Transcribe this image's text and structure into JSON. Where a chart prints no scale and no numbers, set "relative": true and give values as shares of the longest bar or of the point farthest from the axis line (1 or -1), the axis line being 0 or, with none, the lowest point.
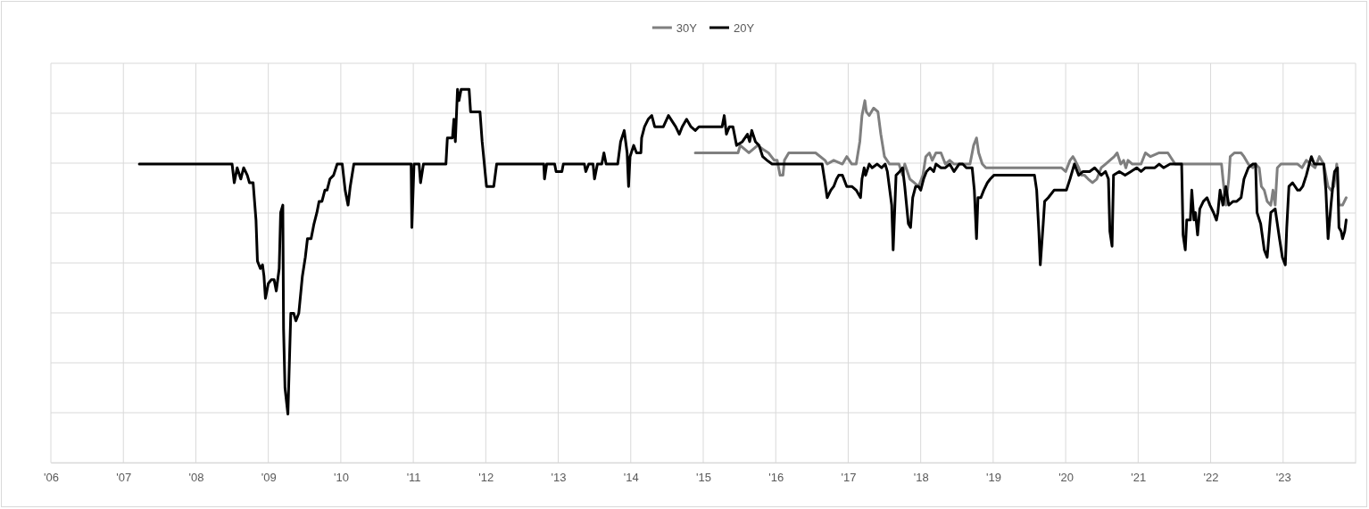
{
  "chart_data": {
    "type": "line",
    "relative": true,
    "xlim": [
      2006,
      2024
    ],
    "xticks": [
      {
        "value": 2006,
        "label": "'06"
      },
      {
        "value": 2007,
        "label": "'07"
      },
      {
        "value": 2008,
        "label": "'08"
      },
      {
        "value": 2009,
        "label": "'09"
      },
      {
        "value": 2010,
        "label": "'10"
      },
      {
        "value": 2011,
        "label": "'11"
      },
      {
        "value": 2012,
        "label": "'12"
      },
      {
        "value": 2013,
        "label": "'13"
      },
      {
        "value": 2014,
        "label": "'14"
      },
      {
        "value": 2015,
        "label": "'15"
      },
      {
        "value": 2016,
        "label": "'16"
      },
      {
        "value": 2017,
        "label": "'17"
      },
      {
        "value": 2018,
        "label": "'18"
      },
      {
        "value": 2019,
        "label": "'19"
      },
      {
        "value": 2020,
        "label": "'20"
      },
      {
        "value": 2021,
        "label": "'21"
      },
      {
        "value": 2022,
        "label": "'22"
      },
      {
        "value": 2023,
        "label": "'23"
      },
      {
        "value": 2024,
        "label": null
      }
    ],
    "grid": true,
    "legend": "top",
    "line_style": "solid",
    "marker": "none",
    "series": [
      {
        "name": "30Y",
        "color": "#7f7f7f",
        "x": [
          2014.89,
          2015.48,
          2015.51,
          2015.63,
          2015.75,
          2015.82,
          2015.9,
          2015.98,
          2016.02,
          2016.06,
          2016.1,
          2016.12,
          2016.18,
          2016.31,
          2016.43,
          2016.55,
          2016.68,
          2016.71,
          2016.8,
          2016.92,
          2016.98,
          2017.05,
          2017.11,
          2017.16,
          2017.19,
          2017.23,
          2017.25,
          2017.29,
          2017.35,
          2017.41,
          2017.45,
          2017.5,
          2017.57,
          2017.7,
          2017.75,
          2017.78,
          2017.85,
          2017.91,
          2017.97,
          2018.03,
          2018.07,
          2018.12,
          2018.16,
          2018.21,
          2018.28,
          2018.34,
          2018.4,
          2018.46,
          2018.51,
          2018.58,
          2018.68,
          2018.73,
          2018.77,
          2018.8,
          2018.85,
          2018.9,
          2019.01,
          2019.14,
          2019.26,
          2019.38,
          2019.51,
          2019.63,
          2019.75,
          2019.87,
          2019.94,
          2020.0,
          2020.06,
          2020.1,
          2020.13,
          2020.18,
          2020.22,
          2020.26,
          2020.31,
          2020.37,
          2020.43,
          2020.49,
          2020.55,
          2020.61,
          2020.67,
          2020.71,
          2020.76,
          2020.8,
          2020.83,
          2020.86,
          2020.92,
          2020.98,
          2021.04,
          2021.1,
          2021.17,
          2021.29,
          2021.41,
          2021.51,
          2021.66,
          2021.78,
          2022.03,
          2022.15,
          2022.17,
          2022.21,
          2022.25,
          2022.27,
          2022.33,
          2022.42,
          2022.46,
          2022.52,
          2022.58,
          2022.62,
          2022.67,
          2022.7,
          2022.74,
          2022.78,
          2022.83,
          2022.86,
          2022.89,
          2022.92,
          2022.97,
          2023.07,
          2023.13,
          2023.2,
          2023.26,
          2023.32,
          2023.38,
          2023.44,
          2023.5,
          2023.56,
          2023.62,
          2023.66,
          2023.7,
          2023.74,
          2023.77,
          2023.82,
          2023.87
        ],
        "values": [
          0.83,
          0.83,
          0.85,
          0.83,
          0.85,
          0.84,
          0.83,
          0.81,
          0.81,
          0.77,
          0.77,
          0.81,
          0.83,
          0.83,
          0.83,
          0.83,
          0.81,
          0.8,
          0.81,
          0.8,
          0.82,
          0.8,
          0.8,
          0.86,
          0.93,
          0.97,
          0.94,
          0.93,
          0.95,
          0.94,
          0.88,
          0.82,
          0.8,
          0.8,
          0.77,
          0.8,
          0.76,
          0.75,
          0.74,
          0.77,
          0.82,
          0.83,
          0.81,
          0.83,
          0.83,
          0.8,
          0.81,
          0.8,
          0.8,
          0.8,
          0.8,
          0.85,
          0.87,
          0.83,
          0.8,
          0.79,
          0.79,
          0.79,
          0.79,
          0.79,
          0.79,
          0.79,
          0.79,
          0.79,
          0.79,
          0.78,
          0.81,
          0.82,
          0.81,
          0.79,
          0.77,
          0.77,
          0.76,
          0.75,
          0.76,
          0.79,
          0.8,
          0.81,
          0.82,
          0.83,
          0.8,
          0.81,
          0.79,
          0.81,
          0.8,
          0.8,
          0.8,
          0.83,
          0.82,
          0.83,
          0.83,
          0.8,
          0.8,
          0.8,
          0.8,
          0.8,
          0.76,
          0.69,
          0.76,
          0.82,
          0.83,
          0.83,
          0.82,
          0.8,
          0.79,
          0.8,
          0.79,
          0.74,
          0.73,
          0.7,
          0.69,
          0.73,
          0.69,
          0.79,
          0.8,
          0.8,
          0.8,
          0.8,
          0.79,
          0.81,
          0.8,
          0.79,
          0.82,
          0.8,
          0.74,
          0.73,
          0.74,
          0.8,
          0.69,
          0.69,
          0.71
        ]
      },
      {
        "name": "20Y",
        "color": "#000000",
        "x": [
          2007.22,
          2008.5,
          2008.53,
          2008.57,
          2008.62,
          2008.66,
          2008.71,
          2008.74,
          2008.79,
          2008.83,
          2008.85,
          2008.89,
          2008.92,
          2008.94,
          2008.96,
          2009.0,
          2009.04,
          2009.08,
          2009.11,
          2009.15,
          2009.17,
          2009.2,
          2009.21,
          2009.23,
          2009.27,
          2009.31,
          2009.35,
          2009.38,
          2009.42,
          2009.47,
          2009.51,
          2009.54,
          2009.59,
          2009.63,
          2009.67,
          2009.7,
          2009.74,
          2009.78,
          2009.81,
          2009.85,
          2009.9,
          2009.95,
          2010.02,
          2010.06,
          2010.1,
          2010.13,
          2010.18,
          2010.97,
          2010.98,
          2011.01,
          2011.08,
          2011.1,
          2011.14,
          2011.45,
          2011.47,
          2011.54,
          2011.56,
          2011.58,
          2011.61,
          2011.63,
          2011.66,
          2011.77,
          2011.79,
          2011.92,
          2011.95,
          2011.98,
          2012.01,
          2012.11,
          2012.15,
          2012.8,
          2012.81,
          2012.84,
          2012.95,
          2012.97,
          2013.05,
          2013.07,
          2013.36,
          2013.38,
          2013.42,
          2013.48,
          2013.5,
          2013.54,
          2013.6,
          2013.63,
          2013.66,
          2013.82,
          2013.86,
          2013.91,
          2013.95,
          2013.97,
          2013.99,
          2014.04,
          2014.08,
          2014.14,
          2014.15,
          2014.19,
          2014.24,
          2014.29,
          2014.33,
          2014.45,
          2014.52,
          2014.62,
          2014.67,
          2014.71,
          2014.77,
          2014.83,
          2014.89,
          2014.94,
          2015.26,
          2015.29,
          2015.32,
          2015.36,
          2015.41,
          2015.46,
          2015.54,
          2015.61,
          2015.64,
          2015.67,
          2015.72,
          2015.77,
          2015.82,
          2015.88,
          2015.95,
          2016.64,
          2016.68,
          2016.71,
          2016.76,
          2016.8,
          2016.84,
          2016.87,
          2016.92,
          2016.98,
          2017.05,
          2017.11,
          2017.17,
          2017.19,
          2017.22,
          2017.24,
          2017.29,
          2017.33,
          2017.4,
          2017.46,
          2017.51,
          2017.54,
          2017.6,
          2017.62,
          2017.66,
          2017.71,
          2017.75,
          2017.78,
          2017.83,
          2017.86,
          2017.89,
          2017.93,
          2017.97,
          2018.0,
          2018.04,
          2018.08,
          2018.13,
          2018.18,
          2018.21,
          2018.28,
          2018.34,
          2018.4,
          2018.46,
          2018.53,
          2018.58,
          2018.63,
          2018.71,
          2018.74,
          2018.77,
          2018.79,
          2018.83,
          2018.87,
          2018.92,
          2018.96,
          2019.01,
          2019.07,
          2019.14,
          2019.2,
          2019.57,
          2019.6,
          2019.63,
          2019.65,
          2019.69,
          2019.71,
          2019.76,
          2019.84,
          2019.9,
          2019.96,
          2020.01,
          2020.06,
          2020.12,
          2020.18,
          2020.24,
          2020.33,
          2020.4,
          2020.49,
          2020.55,
          2020.59,
          2020.61,
          2020.64,
          2020.66,
          2020.74,
          2020.82,
          2020.9,
          2020.98,
          2021.04,
          2021.1,
          2021.17,
          2021.23,
          2021.29,
          2021.35,
          2021.44,
          2021.53,
          2021.6,
          2021.62,
          2021.65,
          2021.67,
          2021.72,
          2021.74,
          2021.77,
          2021.79,
          2021.82,
          2021.85,
          2021.9,
          2021.95,
          2021.99,
          2022.04,
          2022.08,
          2022.1,
          2022.13,
          2022.17,
          2022.21,
          2022.25,
          2022.31,
          2022.36,
          2022.42,
          2022.46,
          2022.52,
          2022.58,
          2022.62,
          2022.64,
          2022.69,
          2022.74,
          2022.78,
          2022.83,
          2022.89,
          2022.92,
          2022.95,
          2022.99,
          2023.03,
          2023.05,
          2023.08,
          2023.13,
          2023.2,
          2023.23,
          2023.27,
          2023.32,
          2023.36,
          2023.39,
          2023.43,
          2023.47,
          2023.5,
          2023.56,
          2023.59,
          2023.62,
          2023.66,
          2023.69,
          2023.71,
          2023.75,
          2023.77,
          2023.8,
          2023.82,
          2023.85,
          2023.87
        ],
        "values": [
          0.8,
          0.8,
          0.75,
          0.79,
          0.76,
          0.79,
          0.77,
          0.75,
          0.75,
          0.65,
          0.54,
          0.52,
          0.53,
          0.5,
          0.44,
          0.48,
          0.49,
          0.49,
          0.46,
          0.52,
          0.67,
          0.69,
          0.36,
          0.2,
          0.13,
          0.4,
          0.4,
          0.38,
          0.4,
          0.5,
          0.55,
          0.6,
          0.6,
          0.64,
          0.67,
          0.7,
          0.7,
          0.73,
          0.73,
          0.76,
          0.77,
          0.8,
          0.8,
          0.73,
          0.69,
          0.74,
          0.8,
          0.8,
          0.63,
          0.8,
          0.8,
          0.75,
          0.8,
          0.8,
          0.87,
          0.87,
          0.92,
          0.86,
          1.0,
          0.97,
          1.0,
          1.0,
          0.94,
          0.94,
          0.86,
          0.8,
          0.74,
          0.74,
          0.8,
          0.8,
          0.76,
          0.8,
          0.8,
          0.78,
          0.78,
          0.8,
          0.8,
          0.78,
          0.8,
          0.8,
          0.76,
          0.8,
          0.8,
          0.83,
          0.8,
          0.8,
          0.86,
          0.89,
          0.83,
          0.74,
          0.82,
          0.85,
          0.83,
          0.83,
          0.87,
          0.9,
          0.92,
          0.93,
          0.9,
          0.9,
          0.93,
          0.9,
          0.88,
          0.9,
          0.92,
          0.9,
          0.89,
          0.9,
          0.9,
          0.93,
          0.88,
          0.9,
          0.9,
          0.85,
          0.86,
          0.88,
          0.86,
          0.89,
          0.86,
          0.85,
          0.82,
          0.81,
          0.8,
          0.8,
          0.75,
          0.71,
          0.73,
          0.74,
          0.76,
          0.77,
          0.77,
          0.74,
          0.74,
          0.73,
          0.71,
          0.76,
          0.79,
          0.77,
          0.8,
          0.79,
          0.8,
          0.79,
          0.8,
          0.78,
          0.69,
          0.57,
          0.77,
          0.78,
          0.79,
          0.74,
          0.64,
          0.63,
          0.71,
          0.74,
          0.74,
          0.73,
          0.76,
          0.78,
          0.79,
          0.78,
          0.8,
          0.79,
          0.79,
          0.8,
          0.78,
          0.8,
          0.8,
          0.79,
          0.79,
          0.73,
          0.6,
          0.71,
          0.71,
          0.73,
          0.75,
          0.76,
          0.77,
          0.77,
          0.77,
          0.77,
          0.77,
          0.73,
          0.62,
          0.53,
          0.64,
          0.7,
          0.71,
          0.73,
          0.73,
          0.73,
          0.73,
          0.76,
          0.8,
          0.77,
          0.78,
          0.78,
          0.79,
          0.77,
          0.78,
          0.76,
          0.62,
          0.58,
          0.77,
          0.78,
          0.77,
          0.78,
          0.79,
          0.78,
          0.79,
          0.79,
          0.79,
          0.8,
          0.79,
          0.8,
          0.8,
          0.8,
          0.61,
          0.57,
          0.65,
          0.65,
          0.73,
          0.65,
          0.67,
          0.61,
          0.68,
          0.7,
          0.71,
          0.69,
          0.67,
          0.65,
          0.67,
          0.73,
          0.69,
          0.74,
          0.69,
          0.7,
          0.7,
          0.71,
          0.76,
          0.79,
          0.8,
          0.8,
          0.67,
          0.64,
          0.57,
          0.55,
          0.67,
          0.68,
          0.64,
          0.6,
          0.55,
          0.53,
          0.63,
          0.74,
          0.75,
          0.73,
          0.73,
          0.74,
          0.77,
          0.8,
          0.82,
          0.8,
          0.8,
          0.8,
          0.8,
          0.73,
          0.6,
          0.69,
          0.75,
          0.78,
          0.79,
          0.63,
          0.62,
          0.6,
          0.62,
          0.65
        ]
      }
    ]
  }
}
